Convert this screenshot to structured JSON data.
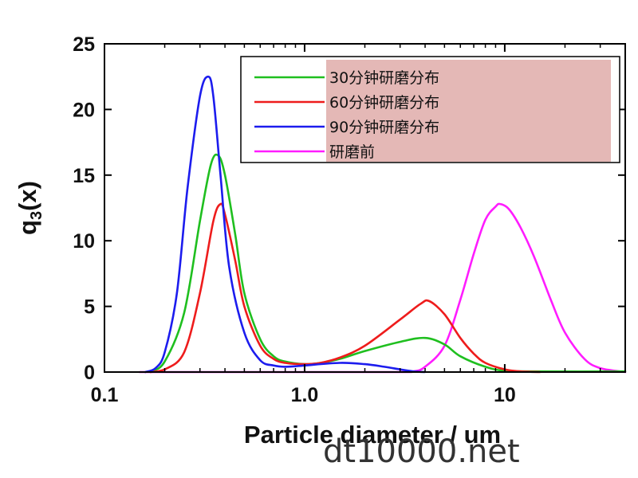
{
  "chart_data": {
    "type": "line",
    "x_scale": "log",
    "xlim": [
      0.1,
      40
    ],
    "ylim": [
      0,
      25
    ],
    "xlabel": "Particle diameter / um",
    "ylabel": "q3(x)",
    "x_ticks": [
      {
        "value": 0.1,
        "label": "0.1"
      },
      {
        "value": 1.0,
        "label": "1.0"
      },
      {
        "value": 10,
        "label": "10"
      }
    ],
    "y_ticks": [
      {
        "value": 0,
        "label": "0"
      },
      {
        "value": 5,
        "label": "5"
      },
      {
        "value": 10,
        "label": "10"
      },
      {
        "value": 15,
        "label": "15"
      },
      {
        "value": 20,
        "label": "20"
      },
      {
        "value": 25,
        "label": "25"
      }
    ],
    "grid": false,
    "legend_position": "top-right",
    "series": [
      {
        "name": "30分钟研磨分布",
        "color": "#1fbf1f",
        "x": [
          0.17,
          0.2,
          0.25,
          0.3,
          0.34,
          0.37,
          0.4,
          0.45,
          0.5,
          0.6,
          0.7,
          0.8,
          1.0,
          1.2,
          1.5,
          2.0,
          3.0,
          4.0,
          5.0,
          6.0,
          8.0,
          10,
          15,
          40
        ],
        "y": [
          0.05,
          0.8,
          4.5,
          11.5,
          15.8,
          16.5,
          15.0,
          10.5,
          6.0,
          2.5,
          1.2,
          0.8,
          0.6,
          0.7,
          1.0,
          1.6,
          2.3,
          2.6,
          2.1,
          1.2,
          0.4,
          0.1,
          0.05,
          0.05
        ]
      },
      {
        "name": "60分钟研磨分布",
        "color": "#ee1c1c",
        "x": [
          0.17,
          0.2,
          0.25,
          0.3,
          0.35,
          0.38,
          0.4,
          0.45,
          0.5,
          0.6,
          0.7,
          0.8,
          1.0,
          1.2,
          1.5,
          2.0,
          3.0,
          3.8,
          4.2,
          5.0,
          6.0,
          7.0,
          8.0,
          10,
          12,
          15
        ],
        "y": [
          0.0,
          0.2,
          1.5,
          6.0,
          11.5,
          12.8,
          12.0,
          8.5,
          5.0,
          2.0,
          1.0,
          0.7,
          0.6,
          0.7,
          1.1,
          2.0,
          4.0,
          5.2,
          5.4,
          4.4,
          2.6,
          1.4,
          0.7,
          0.2,
          0.05,
          0.0
        ]
      },
      {
        "name": "90分钟研磨分布",
        "color": "#1c1cee",
        "x": [
          0.16,
          0.18,
          0.2,
          0.23,
          0.26,
          0.3,
          0.33,
          0.35,
          0.38,
          0.42,
          0.5,
          0.6,
          0.7,
          0.8,
          1.0,
          1.5,
          2.0,
          2.5,
          3.0,
          3.5,
          4.0
        ],
        "y": [
          0.0,
          0.3,
          1.5,
          6.0,
          14.0,
          21.0,
          22.5,
          21.0,
          15.0,
          8.0,
          3.0,
          0.9,
          0.5,
          0.4,
          0.5,
          0.7,
          0.6,
          0.4,
          0.2,
          0.05,
          0.0
        ]
      },
      {
        "name": "研磨前",
        "color": "#ff1cff",
        "x": [
          0.15,
          1.0,
          3.0,
          3.5,
          4.0,
          5.0,
          6.0,
          7.0,
          8.0,
          9.0,
          9.5,
          10.5,
          12,
          14,
          17,
          20,
          25,
          30,
          40
        ],
        "y": [
          0.0,
          0.0,
          0.0,
          0.05,
          0.4,
          2.0,
          5.5,
          9.0,
          11.6,
          12.6,
          12.8,
          12.4,
          11.0,
          8.8,
          5.5,
          3.0,
          1.0,
          0.3,
          0.0
        ]
      }
    ]
  },
  "watermark": "dt10000.net"
}
